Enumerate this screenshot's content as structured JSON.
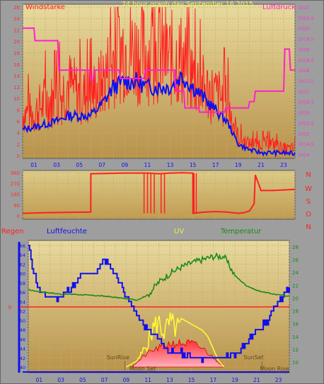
{
  "window": {
    "title": "24 hour graph day   September 16 2015"
  },
  "chart_data": [
    {
      "type": "line",
      "title": "24 hour graph day   September 16 2015",
      "left_label": "Windstärke",
      "right_label": "Luftdruck",
      "x_ticks": [
        "01",
        "03",
        "05",
        "07",
        "09",
        "11",
        "13",
        "15",
        "17",
        "19",
        "21",
        "23"
      ],
      "left_ticks": [
        "0",
        "2",
        "4",
        "6",
        "8",
        "10",
        "12",
        "14",
        "16",
        "18",
        "20",
        "22",
        "24",
        "26"
      ],
      "right_ticks": [
        "1014",
        "1014,5",
        "1015",
        "1015,5",
        "1016",
        "1016,5",
        "1017",
        "1017,5",
        "1018",
        "1018,5",
        "1019",
        "1019,5",
        "1020",
        "1020,5",
        "1021"
      ],
      "ylim_left": [
        0,
        26.5
      ],
      "ylim_right": [
        1014,
        1021
      ],
      "series": [
        {
          "color": "#ff2020",
          "x": [
            0,
            1,
            2,
            3,
            4,
            5,
            6,
            7,
            8,
            9,
            10,
            11,
            12,
            13,
            14,
            15,
            16,
            17,
            18,
            19,
            20,
            21,
            22,
            23,
            24
          ],
          "values": [
            7,
            7,
            9,
            9,
            12,
            10,
            10,
            12,
            16,
            18,
            17,
            17,
            17,
            16,
            16,
            13,
            11,
            10,
            9,
            3,
            2,
            2,
            2,
            1,
            1
          ]
        },
        {
          "color": "#1010ee",
          "x": [
            0,
            1,
            2,
            3,
            4,
            5,
            6,
            7,
            8,
            9,
            10,
            11,
            12,
            13,
            14,
            15,
            16,
            17,
            18,
            19,
            20,
            21,
            22,
            23,
            24
          ],
          "values": [
            4.5,
            5,
            5.5,
            6,
            7,
            7,
            7,
            9,
            12,
            13,
            13,
            12,
            12,
            12,
            14,
            12,
            10,
            8,
            6,
            2,
            1,
            0.5,
            0.5,
            0.5,
            0.3
          ]
        },
        {
          "color": "#ff20d0",
          "x": [
            0,
            1,
            1.1,
            3.1,
            3.2,
            5.9,
            6,
            6.2,
            6.3,
            8.5,
            8.6,
            10.7,
            10.8,
            13.4,
            13.5,
            14.2,
            14.3,
            15.5,
            15.6,
            17.8,
            17.9,
            19.9,
            20,
            20.4,
            20.5,
            23,
            23.1,
            23.5,
            23.6,
            24
          ],
          "values": [
            1020,
            1020,
            1019.4,
            1019.4,
            1018,
            1018,
            1017.5,
            1017.5,
            1018,
            1018,
            1017.6,
            1017.6,
            1018,
            1018,
            1017,
            1017,
            1016.2,
            1016.2,
            1016,
            1016,
            1016.2,
            1016.2,
            1016.5,
            1016.5,
            1017,
            1017,
            1019,
            1019,
            1018,
            1018
          ]
        }
      ]
    },
    {
      "type": "line",
      "right_labels": [
        "N",
        "W",
        "S",
        "O",
        "N"
      ],
      "left_ticks": [
        "0",
        "90",
        "180",
        "270",
        "360"
      ],
      "ylim": [
        0,
        360
      ],
      "series": [
        {
          "color": "#ff2020",
          "x": [
            0,
            2,
            4,
            6,
            6.01,
            9,
            11,
            12,
            13,
            14,
            15,
            15.01,
            16,
            17,
            18,
            19,
            19.5,
            20,
            20.4,
            20.5,
            21,
            22,
            23,
            24
          ],
          "values": [
            20,
            25,
            28,
            30,
            350,
            355,
            355,
            350,
            355,
            358,
            355,
            20,
            30,
            35,
            30,
            20,
            25,
            40,
            100,
            340,
            210,
            210,
            215,
            220
          ]
        }
      ]
    },
    {
      "type": "line",
      "labels": {
        "rain": "Regen",
        "humidity": "Luftfeuchte",
        "uv": "UV",
        "temperature": "Temperatur"
      },
      "left_ticks": [
        "40",
        "42",
        "44",
        "46",
        "48",
        "50",
        "52",
        "54",
        "56",
        "58",
        "60",
        "62",
        "64",
        "66"
      ],
      "right_ticks": [
        "10",
        "12",
        "14",
        "16",
        "18",
        "20",
        "22",
        "24",
        "26",
        "28"
      ],
      "rain_ticks": [
        "0"
      ],
      "ylim_humidity": [
        39.5,
        67.5
      ],
      "ylim_temperature": [
        8.5,
        29
      ],
      "annotations": [
        "SunRise",
        "Moon Set",
        "SunSet",
        "Moon Rise"
      ],
      "series": [
        {
          "name": "Luftfeuchte",
          "color": "#1010ee",
          "x": [
            0,
            0.3,
            1,
            1.5,
            2,
            3,
            4,
            5,
            6,
            7,
            8,
            9,
            10,
            11,
            12,
            13,
            14,
            15,
            16,
            17,
            18,
            19,
            20,
            21,
            22,
            23,
            24
          ],
          "values": [
            66,
            62,
            56,
            55,
            55,
            55,
            57,
            60,
            60,
            63,
            60,
            55,
            51,
            48,
            46,
            43,
            43,
            42,
            42,
            42,
            42,
            43,
            45,
            48,
            50,
            54,
            57
          ]
        },
        {
          "name": "Temperatur",
          "color": "#1a8a1a",
          "x": [
            0,
            1,
            2,
            3,
            4,
            5,
            6,
            7,
            8,
            9,
            10,
            11,
            12,
            13,
            14,
            15,
            16,
            17,
            18,
            19,
            20,
            21,
            22,
            23,
            24
          ],
          "values": [
            21.3,
            21.0,
            20.8,
            20.6,
            20.6,
            20.5,
            20.4,
            20.3,
            20.1,
            19.9,
            19.7,
            20.5,
            22.5,
            23.8,
            24.8,
            25.5,
            26,
            26.5,
            26.5,
            23.5,
            22,
            21.2,
            20.8,
            20.5,
            20.3
          ]
        },
        {
          "name": "UV",
          "color": "#ffff33",
          "x": [
            9,
            10,
            10.5,
            11,
            11.5,
            12,
            12.5,
            13,
            13.5,
            14,
            15,
            16,
            16.5,
            17,
            17.5,
            18
          ],
          "values": [
            0,
            1,
            3,
            5,
            8,
            9,
            7,
            9,
            8,
            8,
            7,
            6,
            5,
            3,
            1,
            0
          ]
        },
        {
          "name": "Sonne",
          "color": "#ff3333",
          "x": [
            9.5,
            10,
            11,
            12,
            13,
            14,
            15,
            16,
            16.5,
            17,
            17.5,
            18
          ],
          "values": [
            0,
            1,
            3,
            4,
            5,
            5,
            5,
            4,
            3,
            2,
            1,
            0
          ]
        }
      ],
      "events": [
        {
          "label": "SunRise",
          "x": 7.2
        },
        {
          "label": "Moon Set",
          "x": 9.3
        },
        {
          "label": "SunSet",
          "x": 19.8
        },
        {
          "label": "Moon Rise",
          "x": 21.3
        }
      ]
    }
  ]
}
